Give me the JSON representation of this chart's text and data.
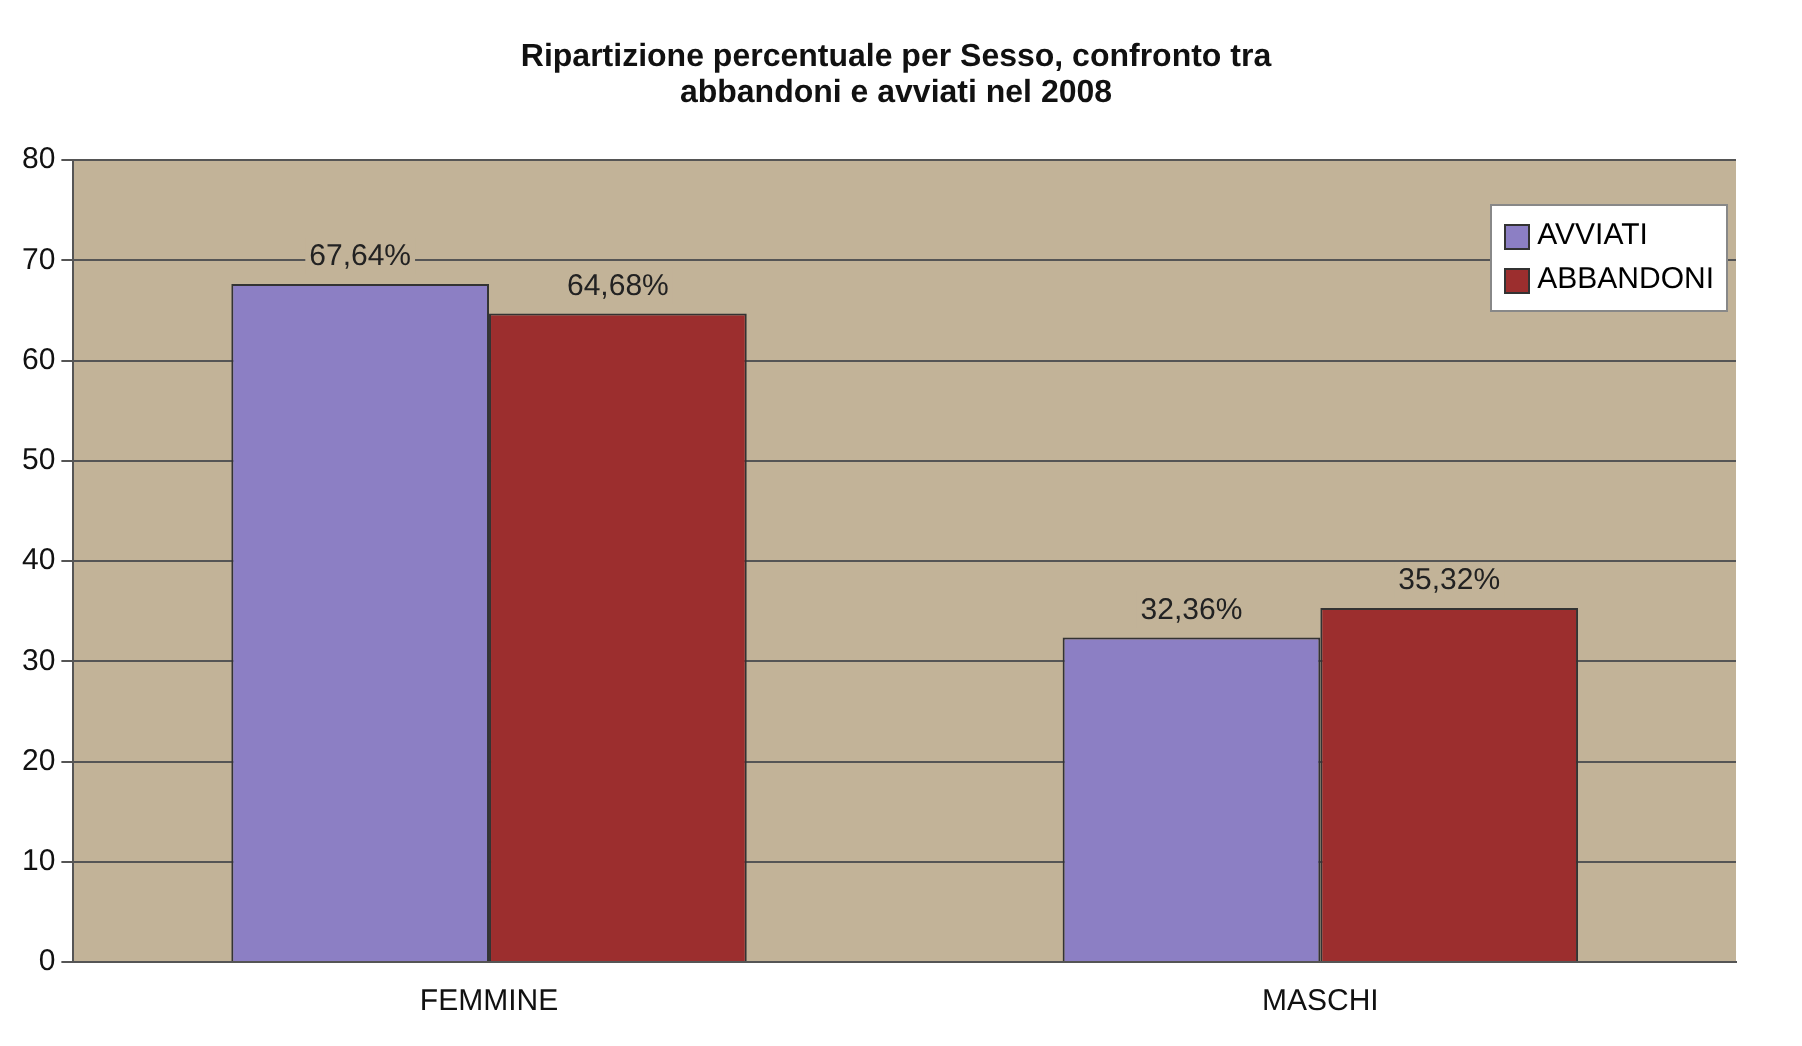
{
  "chart_data": {
    "type": "bar",
    "title": "Ripartizione percentuale per Sesso, confronto tra abbandoni e avviati nel 2008",
    "categories": [
      "FEMMINE",
      "MASCHI"
    ],
    "series": [
      {
        "name": "AVVIATI",
        "color": "#8c7fc4",
        "values": [
          67.64,
          32.36
        ],
        "value_labels": [
          "67,64%",
          "32,36%"
        ]
      },
      {
        "name": "ABBANDONI",
        "color": "#9c2e2e",
        "values": [
          64.68,
          35.32
        ],
        "value_labels": [
          "64,68%",
          "35,32%"
        ]
      }
    ],
    "ylim": [
      0,
      80
    ],
    "yticks": [
      0,
      10,
      20,
      30,
      40,
      50,
      60,
      70,
      80
    ],
    "grid": "y",
    "legend": "top right"
  }
}
